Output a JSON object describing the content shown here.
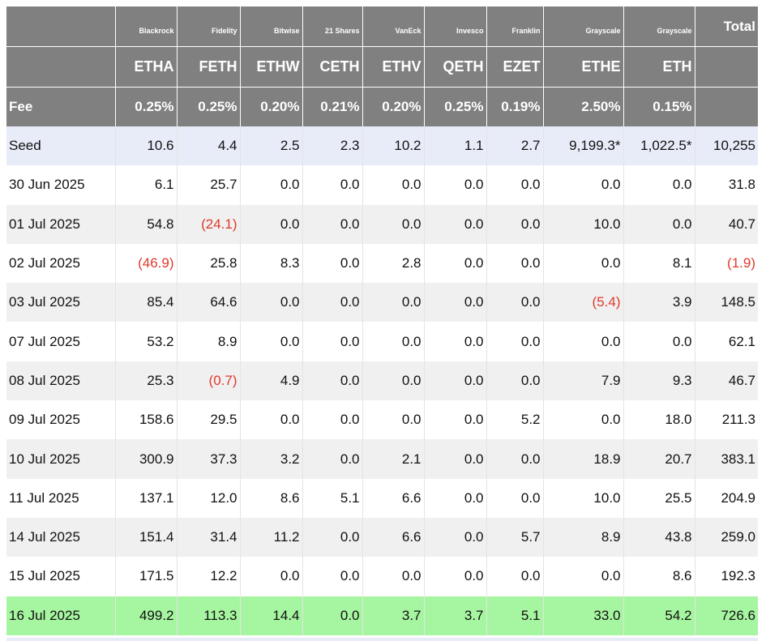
{
  "table": {
    "providers": [
      "Blackrock",
      "Fidelity",
      "Bitwise",
      "21 Shares",
      "VanEck",
      "Invesco",
      "Franklin",
      "Grayscale",
      "Grayscale"
    ],
    "total_header": "Total",
    "tickers": [
      "ETHA",
      "FETH",
      "ETHW",
      "CETH",
      "ETHV",
      "QETH",
      "EZET",
      "ETHE",
      "ETH"
    ],
    "fee_label": "Fee",
    "fees": [
      "0.25%",
      "0.25%",
      "0.20%",
      "0.21%",
      "0.20%",
      "0.25%",
      "0.19%",
      "2.50%",
      "0.15%"
    ],
    "rows": [
      [
        "Seed",
        "10.6",
        "4.4",
        "2.5",
        "2.3",
        "10.2",
        "1.1",
        "2.7",
        "9,199.3*",
        "1,022.5*",
        "10,255"
      ],
      [
        "30 Jun 2025",
        "6.1",
        "25.7",
        "0.0",
        "0.0",
        "0.0",
        "0.0",
        "0.0",
        "0.0",
        "0.0",
        "31.8"
      ],
      [
        "01 Jul 2025",
        "54.8",
        "(24.1)",
        "0.0",
        "0.0",
        "0.0",
        "0.0",
        "0.0",
        "10.0",
        "0.0",
        "40.7"
      ],
      [
        "02 Jul 2025",
        "(46.9)",
        "25.8",
        "8.3",
        "0.0",
        "2.8",
        "0.0",
        "0.0",
        "0.0",
        "8.1",
        "(1.9)"
      ],
      [
        "03 Jul 2025",
        "85.4",
        "64.6",
        "0.0",
        "0.0",
        "0.0",
        "0.0",
        "0.0",
        "(5.4)",
        "3.9",
        "148.5"
      ],
      [
        "07 Jul 2025",
        "53.2",
        "8.9",
        "0.0",
        "0.0",
        "0.0",
        "0.0",
        "0.0",
        "0.0",
        "0.0",
        "62.1"
      ],
      [
        "08 Jul 2025",
        "25.3",
        "(0.7)",
        "4.9",
        "0.0",
        "0.0",
        "0.0",
        "0.0",
        "7.9",
        "9.3",
        "46.7"
      ],
      [
        "09 Jul 2025",
        "158.6",
        "29.5",
        "0.0",
        "0.0",
        "0.0",
        "0.0",
        "5.2",
        "0.0",
        "18.0",
        "211.3"
      ],
      [
        "10 Jul 2025",
        "300.9",
        "37.3",
        "3.2",
        "0.0",
        "2.1",
        "0.0",
        "0.0",
        "18.9",
        "20.7",
        "383.1"
      ],
      [
        "11 Jul 2025",
        "137.1",
        "12.0",
        "8.6",
        "5.1",
        "6.6",
        "0.0",
        "0.0",
        "10.0",
        "25.5",
        "204.9"
      ],
      [
        "14 Jul 2025",
        "151.4",
        "31.4",
        "11.2",
        "0.0",
        "6.6",
        "0.0",
        "5.7",
        "8.9",
        "43.8",
        "259.0"
      ],
      [
        "15 Jul 2025",
        "171.5",
        "12.2",
        "0.0",
        "0.0",
        "0.0",
        "0.0",
        "0.0",
        "0.0",
        "8.6",
        "192.3"
      ],
      [
        "16 Jul 2025",
        "499.2",
        "113.3",
        "14.4",
        "0.0",
        "3.7",
        "3.7",
        "5.1",
        "33.0",
        "54.2",
        "726.6"
      ]
    ]
  }
}
